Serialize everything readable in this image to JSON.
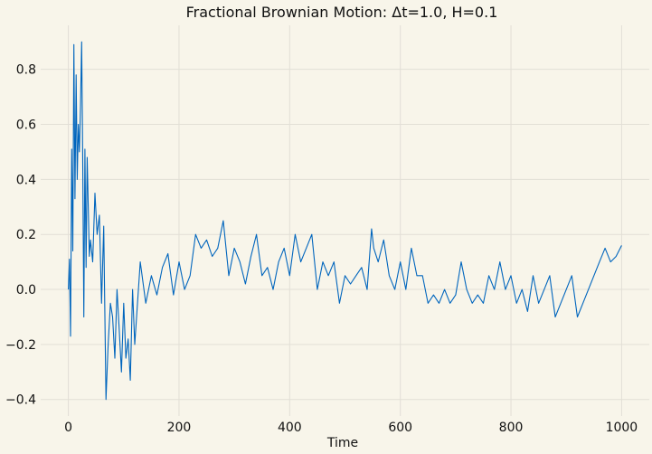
{
  "chart_data": {
    "type": "line",
    "title": "Fractional Brownian Motion: Δt=1.0, H=0.1",
    "xlabel": "Time",
    "ylabel": "",
    "xlim": [
      -50,
      1050
    ],
    "ylim": [
      -0.46,
      0.96
    ],
    "x_ticks": [
      0,
      200,
      400,
      600,
      800,
      1000
    ],
    "y_ticks": [
      -0.4,
      -0.2,
      0.0,
      0.2,
      0.4,
      0.6,
      0.8
    ],
    "x_tick_labels": [
      "0",
      "200",
      "400",
      "600",
      "800",
      "1000"
    ],
    "y_tick_labels": [
      "−0.4",
      "−0.2",
      "0.0",
      "0.2",
      "0.4",
      "0.6",
      "0.8"
    ],
    "grid": true,
    "colors": {
      "line": "#0065bd",
      "background": "#f8f5ea",
      "grid": "#e2dfd6"
    },
    "series": [
      {
        "x": [
          0,
          2,
          4,
          6,
          8,
          10,
          12,
          14,
          16,
          18,
          20,
          22,
          24,
          26,
          28,
          30,
          32,
          34,
          36,
          38,
          40,
          44,
          48,
          52,
          56,
          60,
          64,
          68,
          72,
          76,
          80,
          84,
          88,
          92,
          96,
          100,
          104,
          108,
          112,
          116,
          120,
          130,
          140,
          150,
          160,
          170,
          180,
          190,
          200,
          210,
          220,
          230,
          240,
          250,
          260,
          270,
          280,
          290,
          300,
          310,
          320,
          330,
          340,
          350,
          360,
          370,
          380,
          390,
          400,
          410,
          420,
          430,
          440,
          450,
          460,
          470,
          480,
          490,
          500,
          510,
          520,
          530,
          540,
          548,
          552,
          560,
          570,
          580,
          590,
          600,
          610,
          620,
          630,
          640,
          650,
          660,
          670,
          680,
          690,
          700,
          710,
          720,
          730,
          740,
          750,
          760,
          770,
          780,
          790,
          800,
          810,
          820,
          830,
          840,
          850,
          860,
          870,
          880,
          890,
          900,
          910,
          920,
          930,
          940,
          950,
          960,
          970,
          980,
          990,
          1000
        ],
        "values": [
          0.0,
          0.11,
          -0.17,
          0.51,
          0.14,
          0.89,
          0.33,
          0.78,
          0.4,
          0.6,
          0.5,
          0.68,
          0.9,
          0.46,
          -0.1,
          0.51,
          0.08,
          0.48,
          0.3,
          0.12,
          0.18,
          0.1,
          0.35,
          0.2,
          0.27,
          -0.05,
          0.23,
          -0.4,
          -0.2,
          -0.05,
          -0.1,
          -0.25,
          0.0,
          -0.15,
          -0.3,
          -0.05,
          -0.25,
          -0.18,
          -0.33,
          0.0,
          -0.2,
          0.1,
          -0.05,
          0.05,
          -0.02,
          0.08,
          0.13,
          -0.02,
          0.1,
          0.0,
          0.05,
          0.2,
          0.15,
          0.18,
          0.12,
          0.15,
          0.25,
          0.05,
          0.15,
          0.1,
          0.02,
          0.12,
          0.2,
          0.05,
          0.08,
          0.0,
          0.1,
          0.15,
          0.05,
          0.2,
          0.1,
          0.15,
          0.2,
          0.0,
          0.1,
          0.05,
          0.1,
          -0.05,
          0.05,
          0.02,
          0.05,
          0.08,
          0.0,
          0.22,
          0.15,
          0.1,
          0.18,
          0.05,
          0.0,
          0.1,
          0.0,
          0.15,
          0.05,
          0.05,
          -0.05,
          -0.02,
          -0.05,
          0.0,
          -0.05,
          -0.02,
          0.1,
          0.0,
          -0.05,
          -0.02,
          -0.05,
          0.05,
          0.0,
          0.1,
          0.0,
          0.05,
          -0.05,
          0.0,
          -0.08,
          0.05,
          -0.05,
          0.0,
          0.05,
          -0.1,
          -0.05,
          0.0,
          0.05,
          -0.1,
          -0.05,
          0.0,
          0.05,
          0.1,
          0.15,
          0.1,
          0.12,
          0.16
        ]
      }
    ]
  }
}
